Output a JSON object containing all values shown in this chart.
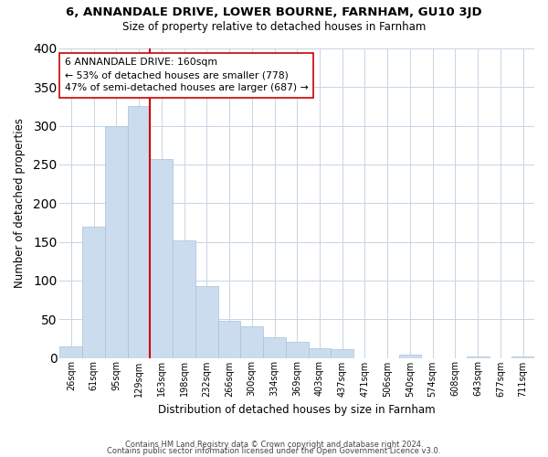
{
  "title": "6, ANNANDALE DRIVE, LOWER BOURNE, FARNHAM, GU10 3JD",
  "subtitle": "Size of property relative to detached houses in Farnham",
  "xlabel": "Distribution of detached houses by size in Farnham",
  "ylabel": "Number of detached properties",
  "bar_labels": [
    "26sqm",
    "61sqm",
    "95sqm",
    "129sqm",
    "163sqm",
    "198sqm",
    "232sqm",
    "266sqm",
    "300sqm",
    "334sqm",
    "369sqm",
    "403sqm",
    "437sqm",
    "471sqm",
    "506sqm",
    "540sqm",
    "574sqm",
    "608sqm",
    "643sqm",
    "677sqm",
    "711sqm"
  ],
  "bar_values": [
    15,
    170,
    300,
    325,
    257,
    152,
    93,
    48,
    41,
    27,
    21,
    13,
    11,
    0,
    0,
    4,
    0,
    0,
    2,
    0,
    2
  ],
  "bar_color": "#ccdcef",
  "bar_edge_color": "#a8c0d8",
  "highlight_index": 4,
  "highlight_line_color": "#cc0000",
  "annotation_line1": "6 ANNANDALE DRIVE: 160sqm",
  "annotation_line2": "← 53% of detached houses are smaller (778)",
  "annotation_line3": "47% of semi-detached houses are larger (687) →",
  "annotation_box_color": "#ffffff",
  "annotation_box_edge": "#cc0000",
  "ylim": [
    0,
    400
  ],
  "yticks": [
    0,
    50,
    100,
    150,
    200,
    250,
    300,
    350,
    400
  ],
  "footer_line1": "Contains HM Land Registry data © Crown copyright and database right 2024.",
  "footer_line2": "Contains public sector information licensed under the Open Government Licence v3.0.",
  "background_color": "#ffffff",
  "grid_color": "#c8d4e4"
}
